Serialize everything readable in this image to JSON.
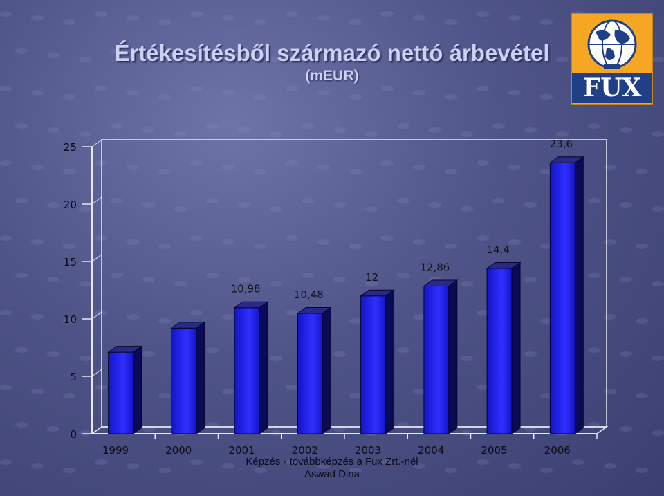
{
  "title": "Értékesítésből származó nettó árbevétel",
  "subtitle": "(mEUR)",
  "logo": {
    "text": "FUX"
  },
  "footer": {
    "line1": "Képzés - továbbképzés a Fux Zrt.-nél",
    "line2": "Aswad Dina"
  },
  "colors": {
    "bar_front": "#1414c8",
    "bar_light": "#2f2fff",
    "bar_side": "#0a0a55",
    "bar_top": "#2a2a86"
  },
  "chart_data": {
    "type": "bar",
    "categories": [
      "1999",
      "2000",
      "2001",
      "2002",
      "2003",
      "2004",
      "2005",
      "2006"
    ],
    "values": [
      7.1,
      9.2,
      10.98,
      10.48,
      12,
      12.86,
      14.4,
      23.6
    ],
    "data_labels": [
      "",
      "",
      "10,98",
      "10,48",
      "12",
      "12,86",
      "14,4",
      "23,6"
    ],
    "ylim": [
      0,
      25
    ],
    "yticks": [
      "0",
      "5",
      "10",
      "15",
      "20",
      "25"
    ],
    "grid": false,
    "style": "3d"
  }
}
